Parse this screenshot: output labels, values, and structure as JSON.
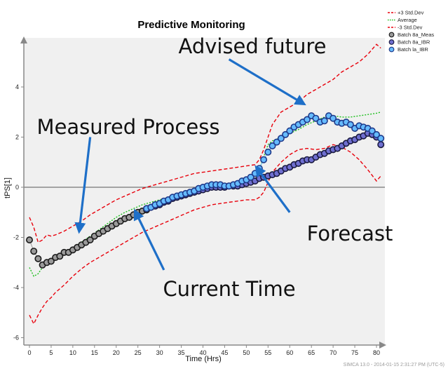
{
  "chart_data": {
    "type": "line",
    "title": "Predictive Monitoring",
    "xlabel": "Time (Hrs)",
    "ylabel": "tPS[1]",
    "xlim": [
      -1,
      82
    ],
    "ylim": [
      -6,
      6
    ],
    "xticks": [
      0,
      5,
      10,
      15,
      20,
      25,
      30,
      35,
      40,
      45,
      50,
      55,
      60,
      65,
      70,
      75,
      80
    ],
    "yticks": [
      -6,
      -4,
      -2,
      0,
      2,
      4
    ],
    "zero_line": 0,
    "legend_position": "top-right",
    "legend": [
      "+3 Std.Dev",
      "Average",
      "-3 Std.Dev",
      "Batch 8a_Meas",
      "Batch 8a_IBR",
      "Batch la_IBR"
    ],
    "series": [
      {
        "name": "+3 Std.Dev",
        "style": "dashed",
        "color": "#e8000b",
        "x": [
          0,
          1,
          2,
          3,
          4,
          5,
          6,
          8,
          10,
          12,
          14,
          16,
          18,
          20,
          22,
          24,
          26,
          28,
          30,
          32,
          34,
          36,
          38,
          40,
          42,
          44,
          46,
          48,
          50,
          52,
          53,
          54,
          55,
          56,
          58,
          60,
          62,
          64,
          66,
          68,
          70,
          72,
          74,
          76,
          78,
          80,
          81
        ],
        "values": [
          -1.2,
          -1.6,
          -2.2,
          -2.1,
          -1.9,
          -1.95,
          -1.9,
          -1.75,
          -1.55,
          -1.35,
          -1.1,
          -0.9,
          -0.7,
          -0.5,
          -0.35,
          -0.2,
          -0.05,
          0.05,
          0.15,
          0.25,
          0.35,
          0.45,
          0.55,
          0.6,
          0.65,
          0.7,
          0.75,
          0.8,
          0.85,
          0.9,
          1.1,
          1.5,
          2.0,
          2.5,
          3.0,
          3.2,
          3.4,
          3.7,
          3.9,
          4.1,
          4.3,
          4.6,
          4.8,
          5.0,
          5.3,
          5.7,
          5.55
        ]
      },
      {
        "name": "Average",
        "style": "dotted",
        "color": "#1fbf1f",
        "x": [
          0,
          1,
          2,
          3,
          4,
          5,
          6,
          8,
          10,
          12,
          14,
          16,
          18,
          20,
          22,
          24,
          26,
          28,
          30,
          32,
          34,
          36,
          38,
          40,
          42,
          44,
          46,
          48,
          50,
          52,
          53,
          54,
          55,
          56,
          58,
          60,
          62,
          64,
          66,
          68,
          70,
          72,
          74,
          76,
          78,
          80,
          81
        ],
        "values": [
          -3.2,
          -3.55,
          -3.45,
          -3.2,
          -2.95,
          -2.85,
          -2.75,
          -2.6,
          -2.4,
          -2.2,
          -1.95,
          -1.7,
          -1.45,
          -1.2,
          -1.0,
          -0.85,
          -0.7,
          -0.6,
          -0.5,
          -0.4,
          -0.3,
          -0.2,
          -0.1,
          -0.05,
          0.0,
          0.05,
          0.1,
          0.15,
          0.2,
          0.3,
          0.7,
          1.2,
          1.7,
          1.85,
          2.0,
          2.15,
          2.3,
          2.5,
          2.65,
          2.8,
          2.85,
          2.8,
          2.8,
          2.85,
          2.9,
          2.95,
          3.0
        ]
      },
      {
        "name": "-3 Std.Dev",
        "style": "dashed",
        "color": "#e8000b",
        "x": [
          0,
          1,
          2,
          3,
          4,
          5,
          6,
          8,
          10,
          12,
          14,
          16,
          18,
          20,
          22,
          24,
          26,
          28,
          30,
          32,
          34,
          36,
          38,
          40,
          42,
          44,
          46,
          48,
          50,
          52,
          53,
          54,
          55,
          56,
          58,
          60,
          62,
          64,
          66,
          68,
          70,
          72,
          74,
          76,
          78,
          80,
          81
        ],
        "values": [
          -5.1,
          -5.45,
          -5.1,
          -4.8,
          -4.55,
          -4.4,
          -4.2,
          -3.9,
          -3.55,
          -3.25,
          -3.0,
          -2.8,
          -2.6,
          -2.4,
          -2.2,
          -2.0,
          -1.8,
          -1.65,
          -1.5,
          -1.35,
          -1.2,
          -1.05,
          -0.9,
          -0.8,
          -0.7,
          -0.65,
          -0.6,
          -0.55,
          -0.5,
          -0.5,
          -0.4,
          -0.2,
          0.2,
          0.6,
          1.0,
          1.3,
          1.5,
          1.55,
          1.5,
          1.55,
          1.7,
          1.6,
          1.4,
          1.1,
          0.7,
          0.25,
          0.45
        ]
      },
      {
        "name": "Batch 8a_Meas",
        "style": "markers",
        "color": "#1a1a1a",
        "fill": "#9a9a9a",
        "x": [
          0,
          1,
          2,
          3,
          4,
          5,
          6,
          7,
          8,
          9,
          10,
          11,
          12,
          13,
          14,
          15,
          16,
          17,
          18,
          19,
          20,
          21,
          22,
          23,
          24,
          25,
          26,
          27
        ],
        "values": [
          -2.1,
          -2.55,
          -2.85,
          -3.1,
          -3.0,
          -2.95,
          -2.8,
          -2.75,
          -2.6,
          -2.6,
          -2.5,
          -2.4,
          -2.3,
          -2.2,
          -2.1,
          -1.95,
          -1.85,
          -1.75,
          -1.65,
          -1.55,
          -1.45,
          -1.35,
          -1.25,
          -1.2,
          -1.1,
          -1.0,
          -0.95,
          -0.9
        ]
      },
      {
        "name": "Batch 8a_IBR",
        "style": "markers",
        "color": "#1a1a40",
        "fill": "#6f6fd0",
        "x": [
          27,
          28,
          29,
          30,
          31,
          32,
          33,
          34,
          35,
          36,
          37,
          38,
          39,
          40,
          41,
          42,
          43,
          44,
          45,
          46,
          47,
          48,
          49,
          50,
          51,
          52,
          53,
          54,
          55,
          56,
          57,
          58,
          59,
          60,
          61,
          62,
          63,
          64,
          65,
          66,
          67,
          68,
          69,
          70,
          71,
          72,
          73,
          74,
          75,
          76,
          77,
          78,
          79,
          80,
          81
        ],
        "values": [
          -0.85,
          -0.8,
          -0.75,
          -0.7,
          -0.6,
          -0.55,
          -0.45,
          -0.4,
          -0.35,
          -0.3,
          -0.25,
          -0.2,
          -0.15,
          -0.1,
          -0.05,
          0.0,
          0.0,
          0.0,
          0.0,
          0.05,
          0.05,
          0.05,
          0.1,
          0.15,
          0.2,
          0.25,
          0.35,
          0.4,
          0.45,
          0.5,
          0.55,
          0.65,
          0.75,
          0.8,
          0.9,
          0.95,
          1.05,
          1.1,
          1.1,
          1.2,
          1.3,
          1.35,
          1.45,
          1.5,
          1.55,
          1.65,
          1.75,
          1.85,
          1.9,
          2.0,
          2.05,
          2.15,
          2.1,
          2.0,
          1.7
        ]
      },
      {
        "name": "Batch la_IBR",
        "style": "markers",
        "color": "#1e3a8a",
        "fill": "#66bbff",
        "x": [
          27,
          28,
          29,
          30,
          31,
          32,
          33,
          34,
          35,
          36,
          37,
          38,
          39,
          40,
          41,
          42,
          43,
          44,
          45,
          46,
          47,
          48,
          49,
          50,
          51,
          52,
          53,
          54,
          55,
          56,
          57,
          58,
          59,
          60,
          61,
          62,
          63,
          64,
          65,
          66,
          67,
          68,
          69,
          70,
          71,
          72,
          73,
          74,
          75,
          76,
          77,
          78,
          79,
          80,
          81
        ],
        "values": [
          -0.85,
          -0.8,
          -0.7,
          -0.65,
          -0.55,
          -0.5,
          -0.4,
          -0.35,
          -0.3,
          -0.25,
          -0.2,
          -0.15,
          -0.05,
          0.0,
          0.05,
          0.1,
          0.1,
          0.1,
          0.05,
          0.05,
          0.1,
          0.15,
          0.25,
          0.3,
          0.4,
          0.55,
          0.75,
          1.1,
          1.4,
          1.65,
          1.8,
          1.95,
          2.1,
          2.25,
          2.4,
          2.5,
          2.6,
          2.7,
          2.85,
          2.75,
          2.6,
          2.65,
          2.85,
          2.75,
          2.6,
          2.55,
          2.6,
          2.5,
          2.35,
          2.45,
          2.4,
          2.35,
          2.25,
          2.1,
          1.95
        ]
      }
    ],
    "annotations": [
      {
        "text": "Advised future",
        "arrow_from": [
          46,
          5.1
        ],
        "arrow_to": [
          63,
          3.35
        ]
      },
      {
        "text": "Measured Process",
        "arrow_from": [
          14,
          2.0
        ],
        "arrow_to": [
          11.5,
          -1.7
        ]
      },
      {
        "text": "Forecast",
        "arrow_from": [
          60,
          -1.0
        ],
        "arrow_to": [
          52.5,
          0.75
        ]
      },
      {
        "text": "Current Time",
        "arrow_from": [
          31,
          -3.3
        ],
        "arrow_to": [
          24.5,
          -1.0
        ]
      }
    ]
  },
  "footer": "SIMCA 13.0 - 2014-01-15 2:31:27 PM (UTC-5)"
}
